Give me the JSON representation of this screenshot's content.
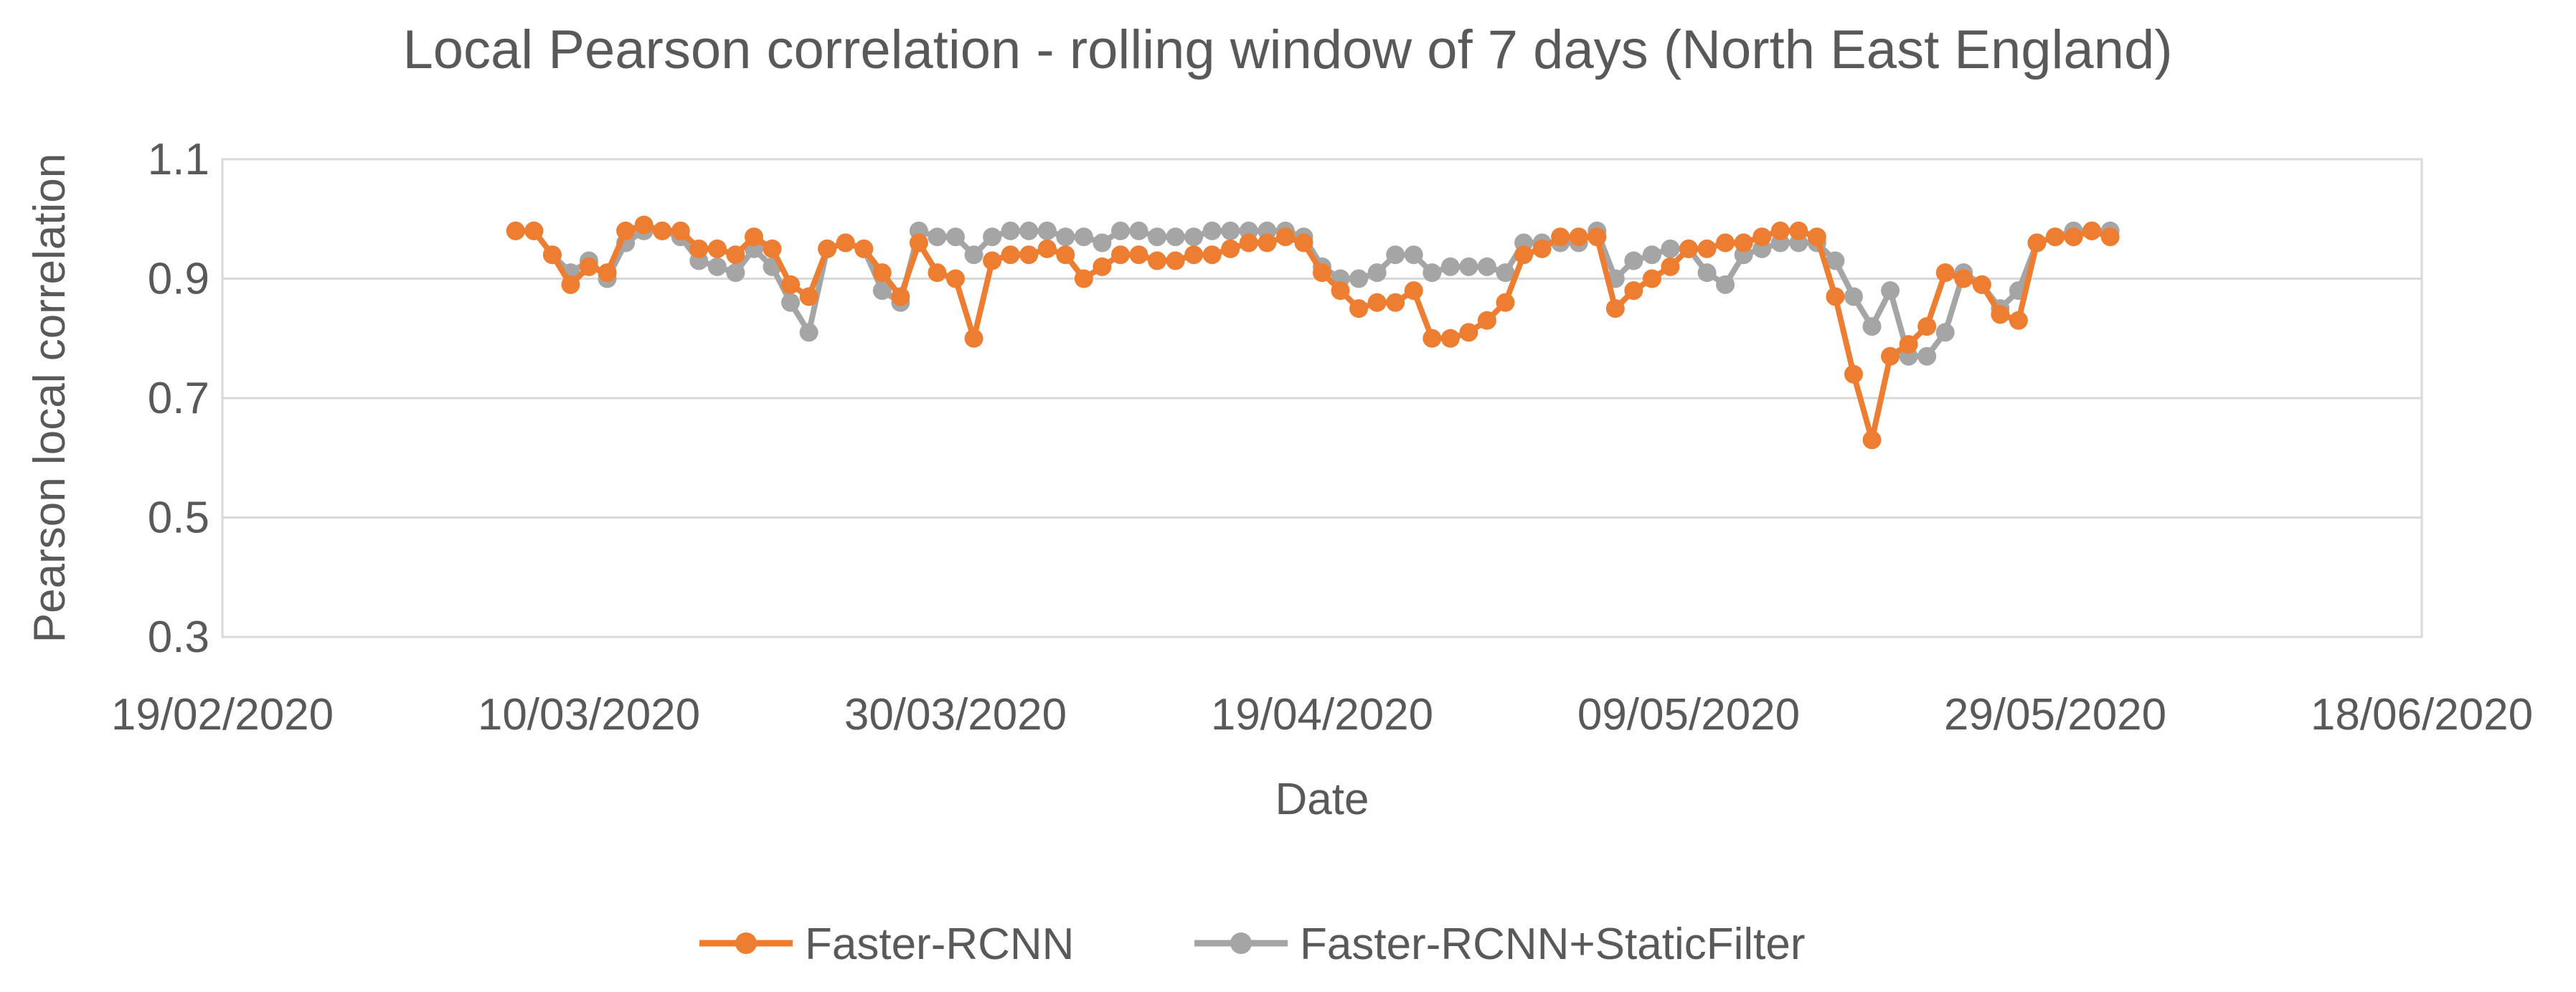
{
  "chart_data": {
    "type": "line",
    "title": "Local Pearson correlation - rolling window of 7 days (North East England)",
    "xlabel": "Date",
    "ylabel": "Pearson local correlation",
    "ylim": [
      0.3,
      1.1
    ],
    "yticks": [
      "0.3",
      "0.5",
      "0.7",
      "0.9",
      "1.1"
    ],
    "xlim": [
      "19/02/2020",
      "18/06/2020"
    ],
    "xticks": [
      "19/02/2020",
      "10/03/2020",
      "30/03/2020",
      "19/04/2020",
      "09/05/2020",
      "29/05/2020",
      "18/06/2020"
    ],
    "grid": "horizontal",
    "legend_position": "bottom",
    "x": [
      "06/03/2020",
      "07/03/2020",
      "08/03/2020",
      "09/03/2020",
      "10/03/2020",
      "11/03/2020",
      "12/03/2020",
      "13/03/2020",
      "14/03/2020",
      "15/03/2020",
      "16/03/2020",
      "17/03/2020",
      "18/03/2020",
      "19/03/2020",
      "20/03/2020",
      "21/03/2020",
      "22/03/2020",
      "23/03/2020",
      "24/03/2020",
      "25/03/2020",
      "26/03/2020",
      "27/03/2020",
      "28/03/2020",
      "29/03/2020",
      "30/03/2020",
      "31/03/2020",
      "01/04/2020",
      "02/04/2020",
      "03/04/2020",
      "04/04/2020",
      "05/04/2020",
      "06/04/2020",
      "07/04/2020",
      "08/04/2020",
      "09/04/2020",
      "10/04/2020",
      "11/04/2020",
      "12/04/2020",
      "13/04/2020",
      "14/04/2020",
      "15/04/2020",
      "16/04/2020",
      "17/04/2020",
      "18/04/2020",
      "19/04/2020",
      "20/04/2020",
      "21/04/2020",
      "22/04/2020",
      "23/04/2020",
      "24/04/2020",
      "25/04/2020",
      "26/04/2020",
      "27/04/2020",
      "28/04/2020",
      "29/04/2020",
      "30/04/2020",
      "01/05/2020",
      "02/05/2020",
      "03/05/2020",
      "04/05/2020",
      "05/05/2020",
      "06/05/2020",
      "07/05/2020",
      "08/05/2020",
      "09/05/2020",
      "10/05/2020",
      "11/05/2020",
      "12/05/2020",
      "13/05/2020",
      "14/05/2020",
      "15/05/2020",
      "16/05/2020",
      "17/05/2020",
      "18/05/2020",
      "19/05/2020",
      "20/05/2020",
      "21/05/2020",
      "22/05/2020",
      "23/05/2020",
      "24/05/2020",
      "25/05/2020",
      "26/05/2020",
      "27/05/2020",
      "28/05/2020",
      "29/05/2020",
      "30/05/2020",
      "31/05/2020",
      "01/06/2020"
    ],
    "series": [
      {
        "name": "Faster-RCNN",
        "color": "#ED7D31",
        "values": [
          0.98,
          0.98,
          0.94,
          0.89,
          0.92,
          0.91,
          0.98,
          0.99,
          0.98,
          0.98,
          0.95,
          0.95,
          0.94,
          0.97,
          0.95,
          0.89,
          0.87,
          0.95,
          0.96,
          0.95,
          0.91,
          0.87,
          0.96,
          0.91,
          0.9,
          0.8,
          0.93,
          0.94,
          0.94,
          0.95,
          0.94,
          0.9,
          0.92,
          0.94,
          0.94,
          0.93,
          0.93,
          0.94,
          0.94,
          0.95,
          0.96,
          0.96,
          0.97,
          0.96,
          0.91,
          0.88,
          0.85,
          0.86,
          0.86,
          0.88,
          0.8,
          0.8,
          0.81,
          0.83,
          0.86,
          0.94,
          0.95,
          0.97,
          0.97,
          0.97,
          0.85,
          0.88,
          0.9,
          0.92,
          0.95,
          0.95,
          0.96,
          0.96,
          0.97,
          0.98,
          0.98,
          0.97,
          0.87,
          0.74,
          0.63,
          0.77,
          0.79,
          0.82,
          0.91,
          0.9,
          0.89,
          0.84,
          0.83,
          0.96,
          0.97,
          0.97,
          0.98,
          0.97
        ]
      },
      {
        "name": "Faster-RCNN+StaticFilter",
        "color": "#A5A5A5",
        "values": [
          0.98,
          0.98,
          0.94,
          0.91,
          0.93,
          0.9,
          0.96,
          0.98,
          0.98,
          0.97,
          0.93,
          0.92,
          0.91,
          0.95,
          0.92,
          0.86,
          0.81,
          0.95,
          0.96,
          0.95,
          0.88,
          0.86,
          0.98,
          0.97,
          0.97,
          0.94,
          0.97,
          0.98,
          0.98,
          0.98,
          0.97,
          0.97,
          0.96,
          0.98,
          0.98,
          0.97,
          0.97,
          0.97,
          0.98,
          0.98,
          0.98,
          0.98,
          0.98,
          0.97,
          0.92,
          0.9,
          0.9,
          0.91,
          0.94,
          0.94,
          0.91,
          0.92,
          0.92,
          0.92,
          0.91,
          0.96,
          0.96,
          0.96,
          0.96,
          0.98,
          0.9,
          0.93,
          0.94,
          0.95,
          0.95,
          0.91,
          0.89,
          0.94,
          0.95,
          0.96,
          0.96,
          0.96,
          0.93,
          0.87,
          0.82,
          0.88,
          0.77,
          0.77,
          0.81,
          0.91,
          0.89,
          0.85,
          0.88,
          0.96,
          0.97,
          0.98,
          0.98,
          0.98
        ]
      }
    ]
  }
}
